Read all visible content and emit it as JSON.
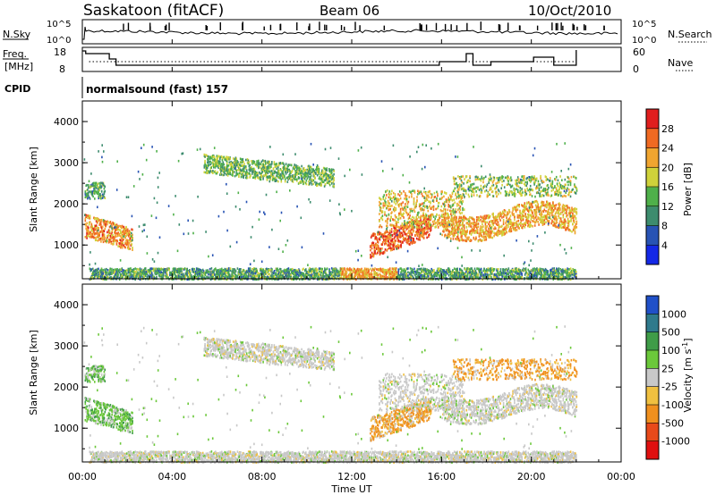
{
  "header": {
    "station": "Saskatoon (fitACF)",
    "beam": "Beam 06",
    "date": "10/Oct/2010"
  },
  "top_panels": {
    "nsky_label": "N.Sky",
    "nsearch_label": "N.Search",
    "exp_ticks": [
      "10^5",
      "10^0"
    ],
    "freq_label": "Freq.",
    "freq_unit": "[MHz]",
    "freq_ticks": [
      "18",
      "8"
    ],
    "nave_label": "Nave",
    "nave_ticks": [
      "60",
      "0"
    ],
    "cpid_label": "CPID",
    "cpid_text": "normalsound (fast) 157"
  },
  "chart_data": [
    {
      "type": "heatmap",
      "name": "power",
      "ylabel": "Slant Range [km]",
      "yticks": [
        "1000",
        "2000",
        "3000",
        "4000"
      ],
      "ylim": [
        180,
        4500
      ],
      "colorbar_label": "Power [dB]",
      "colorbar_ticks": [
        "4",
        "8",
        "12",
        "16",
        "20",
        "24",
        "28"
      ],
      "colorbar_colors": [
        "#1428e6",
        "#2853b4",
        "#3d8c6e",
        "#4fb04a",
        "#cfd23a",
        "#f0a530",
        "#f06a22",
        "#e01e1e"
      ]
    },
    {
      "type": "heatmap",
      "name": "velocity",
      "ylabel": "Slant Range [km]",
      "yticks": [
        "1000",
        "2000",
        "3000",
        "4000"
      ],
      "ylim": [
        180,
        4500
      ],
      "colorbar_label": "Velocity [m s",
      "colorbar_label_sup": "-1",
      "colorbar_label_end": "]",
      "colorbar_ticks": [
        "1000",
        "500",
        "100",
        "25",
        "-25",
        "-100",
        "-500",
        "-1000"
      ],
      "colorbar_colors": [
        "#2050c8",
        "#2f7a8c",
        "#3f9c48",
        "#6bc83a",
        "#c8c8c8",
        "#f0c040",
        "#f0901e",
        "#e84a1a",
        "#e01010"
      ]
    }
  ],
  "x_axis": {
    "label": "Time UT",
    "ticks": [
      "00:00",
      "04:00",
      "08:00",
      "12:00",
      "16:00",
      "20:00",
      "00:00"
    ]
  }
}
